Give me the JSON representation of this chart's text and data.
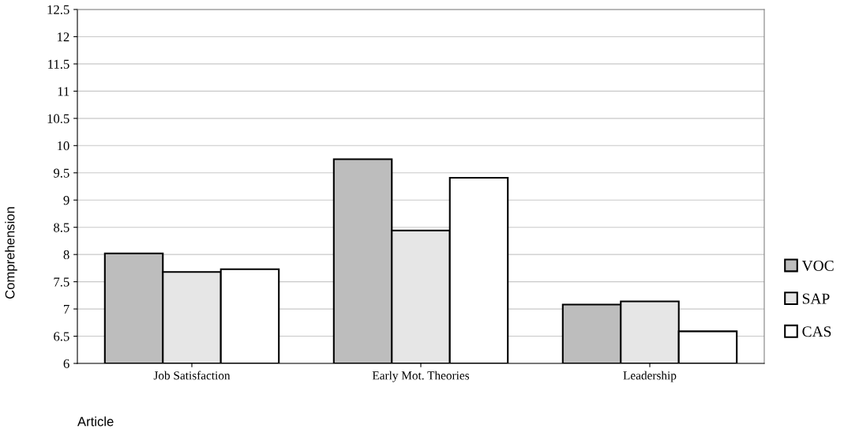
{
  "chart_data": {
    "type": "bar",
    "xlabel": "Article",
    "ylabel": "Comprehension",
    "categories": [
      "Job Satisfaction",
      "Early Mot. Theories",
      "Leadership"
    ],
    "series": [
      {
        "name": "VOC",
        "color": "#bdbdbd",
        "values": [
          8.02,
          9.75,
          7.08
        ]
      },
      {
        "name": "SAP",
        "color": "#e6e6e6",
        "values": [
          7.68,
          8.44,
          7.14
        ]
      },
      {
        "name": "CAS",
        "color": "#ffffff",
        "values": [
          7.73,
          9.41,
          6.59
        ]
      }
    ],
    "ylim": [
      6,
      12.5
    ],
    "yticks": [
      6,
      6.5,
      7,
      7.5,
      8,
      8.5,
      9,
      9.5,
      10,
      10.5,
      11,
      11.5,
      12,
      12.5
    ],
    "grid": "y",
    "legend": "right"
  }
}
